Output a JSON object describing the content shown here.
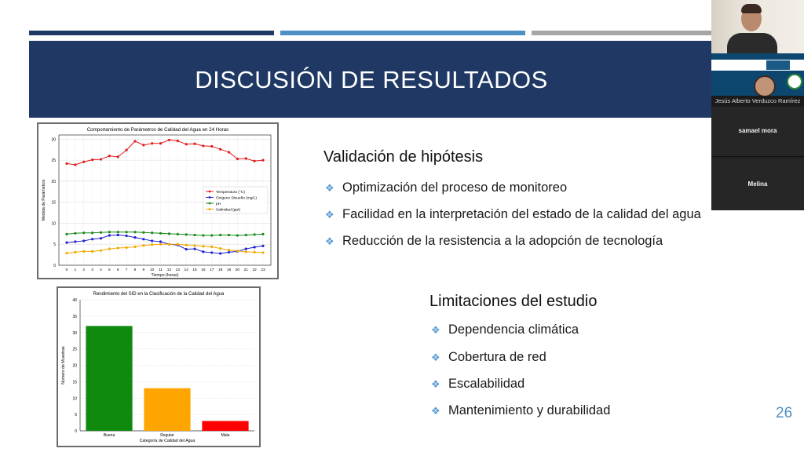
{
  "slide": {
    "title": "DISCUSIÓN DE RESULTADOS",
    "page_number": "26",
    "accent_colors": {
      "navy": "#1f3864",
      "blue": "#4e8fc4",
      "gray": "#a6a6a6",
      "bullet": "#5b9bd5"
    },
    "section1": {
      "heading": "Validación de hipótesis",
      "bullets": [
        "Optimización del proceso de monitoreo",
        "Facilidad en la interpretación del estado de la calidad del agua",
        "Reducción de la resistencia a la adopción de tecnología"
      ]
    },
    "section2": {
      "heading": "Limitaciones del estudio",
      "bullets": [
        "Dependencia climática",
        "Cobertura de red",
        "Escalabilidad",
        "Mantenimiento y durabilidad"
      ]
    },
    "bullet_icon": "diamond-bullet-icon"
  },
  "chart_data": [
    {
      "type": "line",
      "title": "Comportamiento de Parámetros de Calidad del Agua en 24 Horas",
      "xlabel": "Tiempo (horas)",
      "ylabel": "Medida de Parámetros",
      "x": [
        0,
        1,
        2,
        3,
        4,
        5,
        6,
        7,
        8,
        9,
        10,
        11,
        12,
        13,
        14,
        15,
        16,
        17,
        18,
        19,
        20,
        21,
        22,
        23
      ],
      "xticks": [
        "0",
        "1",
        "2",
        "3",
        "4",
        "5",
        "6",
        "7",
        "8",
        "9",
        "10",
        "11",
        "12",
        "13",
        "14",
        "15",
        "16",
        "17",
        "18",
        "19",
        "20",
        "21",
        "22",
        "23"
      ],
      "ylim": [
        0,
        31
      ],
      "yticks": [
        "0",
        "5",
        "10",
        "15",
        "20",
        "25",
        "30"
      ],
      "grid": true,
      "legend_position": "center-right",
      "series": [
        {
          "name": "Temperatura (°C)",
          "color": "#e31a1c",
          "marker": "circle",
          "values": [
            24.2,
            23.9,
            24.6,
            25.1,
            25.2,
            26.0,
            25.8,
            27.4,
            29.5,
            28.6,
            29.0,
            29.0,
            29.8,
            29.6,
            28.8,
            28.9,
            28.4,
            28.3,
            27.6,
            26.9,
            25.3,
            25.4,
            24.8,
            25.0
          ]
        },
        {
          "name": "Oxígeno Disuelto (mg/L)",
          "color": "#1f1fd6",
          "marker": "circle",
          "values": [
            5.4,
            5.6,
            5.8,
            6.2,
            6.4,
            7.1,
            7.2,
            7.0,
            6.6,
            6.2,
            5.8,
            5.6,
            5.0,
            4.8,
            3.8,
            3.9,
            3.2,
            3.0,
            2.8,
            3.1,
            3.3,
            3.9,
            4.3,
            4.6
          ]
        },
        {
          "name": "pH",
          "color": "#1a8a1a",
          "marker": "circle",
          "values": [
            7.4,
            7.6,
            7.7,
            7.7,
            7.8,
            7.9,
            7.9,
            7.9,
            7.9,
            7.8,
            7.7,
            7.6,
            7.5,
            7.4,
            7.3,
            7.2,
            7.1,
            7.1,
            7.2,
            7.2,
            7.1,
            7.2,
            7.3,
            7.4
          ]
        },
        {
          "name": "Salinidad (ppt)",
          "color": "#f5a800",
          "marker": "circle",
          "values": [
            2.9,
            3.1,
            3.3,
            3.3,
            3.5,
            3.9,
            4.1,
            4.2,
            4.4,
            4.7,
            4.9,
            5.0,
            5.0,
            5.0,
            4.8,
            4.7,
            4.5,
            4.4,
            4.0,
            3.6,
            3.4,
            3.2,
            3.1,
            3.0
          ]
        }
      ]
    },
    {
      "type": "bar",
      "title": "Rendimiento del SID en la Clasificación de la Calidad del Agua",
      "xlabel": "Categoría de Calidad del Agua",
      "ylabel": "Número de Muestras",
      "categories": [
        "Buena",
        "Regular",
        "Mala"
      ],
      "values": [
        32,
        13,
        3
      ],
      "colors": [
        "#0f8a0f",
        "#ffa500",
        "#ff0000"
      ],
      "ylim": [
        0,
        40
      ],
      "yticks": [
        "0",
        "5",
        "10",
        "15",
        "20",
        "25",
        "30",
        "35",
        "40"
      ],
      "grid": true
    }
  ],
  "meeting": {
    "participants": [
      {
        "name": "",
        "kind": "camera"
      },
      {
        "name": "Jesús Alberto Verduzco Ramírez",
        "kind": "screen-share"
      },
      {
        "name": "samael mora",
        "kind": "name-only"
      },
      {
        "name": "Melina",
        "kind": "name-only"
      }
    ]
  }
}
